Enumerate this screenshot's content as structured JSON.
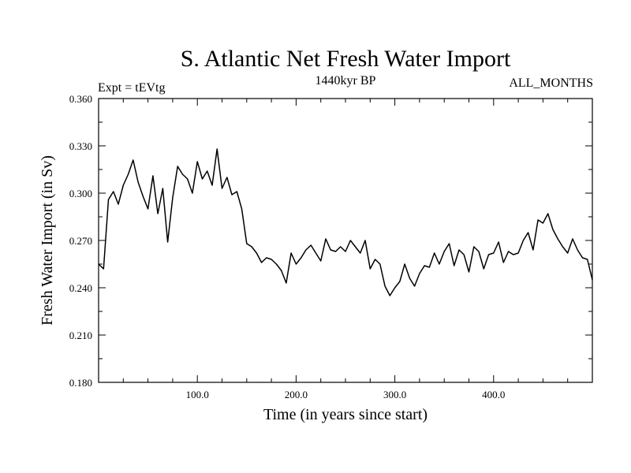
{
  "chart_data": {
    "type": "line",
    "title": "S. Atlantic Net Fresh Water Import",
    "subtitle": "1440kyr BP",
    "left_label": "Expt = tEVtg",
    "right_label": "ALL_MONTHS",
    "xlabel": "Time (in years since start)",
    "ylabel": "Fresh Water Import (in Sv)",
    "xlim": [
      0,
      500
    ],
    "ylim": [
      0.18,
      0.36
    ],
    "x_ticks": [
      100,
      200,
      300,
      400
    ],
    "x_tick_labels": [
      "100.0",
      "200.0",
      "300.0",
      "400.0"
    ],
    "y_ticks": [
      0.18,
      0.21,
      0.24,
      0.27,
      0.3,
      0.33,
      0.36
    ],
    "y_tick_labels": [
      "0.180",
      "0.210",
      "0.240",
      "0.270",
      "0.300",
      "0.330",
      "0.360"
    ],
    "grid": false,
    "line_color": "#000000",
    "series": [
      {
        "name": "Fresh Water Import",
        "x": [
          0,
          5,
          10,
          15,
          20,
          25,
          30,
          35,
          40,
          45,
          50,
          55,
          60,
          65,
          70,
          75,
          80,
          85,
          90,
          95,
          100,
          105,
          110,
          115,
          120,
          125,
          130,
          135,
          140,
          145,
          150,
          155,
          160,
          165,
          170,
          175,
          180,
          185,
          190,
          195,
          200,
          205,
          210,
          215,
          220,
          225,
          230,
          235,
          240,
          245,
          250,
          255,
          260,
          265,
          270,
          275,
          280,
          285,
          290,
          295,
          300,
          305,
          310,
          315,
          320,
          325,
          330,
          335,
          340,
          345,
          350,
          355,
          360,
          365,
          370,
          375,
          380,
          385,
          390,
          395,
          400,
          405,
          410,
          415,
          420,
          425,
          430,
          435,
          440,
          445,
          450,
          455,
          460,
          465,
          470,
          475,
          480,
          485,
          490,
          495,
          500
        ],
        "values": [
          0.255,
          0.252,
          0.296,
          0.301,
          0.293,
          0.305,
          0.312,
          0.321,
          0.307,
          0.298,
          0.29,
          0.311,
          0.287,
          0.303,
          0.269,
          0.297,
          0.317,
          0.312,
          0.309,
          0.3,
          0.32,
          0.309,
          0.314,
          0.305,
          0.328,
          0.303,
          0.31,
          0.299,
          0.301,
          0.29,
          0.268,
          0.266,
          0.262,
          0.256,
          0.259,
          0.258,
          0.255,
          0.251,
          0.243,
          0.262,
          0.255,
          0.259,
          0.264,
          0.267,
          0.262,
          0.257,
          0.271,
          0.264,
          0.263,
          0.266,
          0.263,
          0.27,
          0.266,
          0.262,
          0.27,
          0.252,
          0.258,
          0.255,
          0.241,
          0.235,
          0.24,
          0.244,
          0.255,
          0.246,
          0.241,
          0.249,
          0.254,
          0.253,
          0.262,
          0.255,
          0.263,
          0.268,
          0.254,
          0.264,
          0.261,
          0.25,
          0.266,
          0.263,
          0.252,
          0.261,
          0.262,
          0.269,
          0.256,
          0.263,
          0.261,
          0.262,
          0.27,
          0.275,
          0.264,
          0.283,
          0.281,
          0.287,
          0.277,
          0.271,
          0.266,
          0.262,
          0.271,
          0.264,
          0.259,
          0.258,
          0.245
        ]
      }
    ]
  }
}
